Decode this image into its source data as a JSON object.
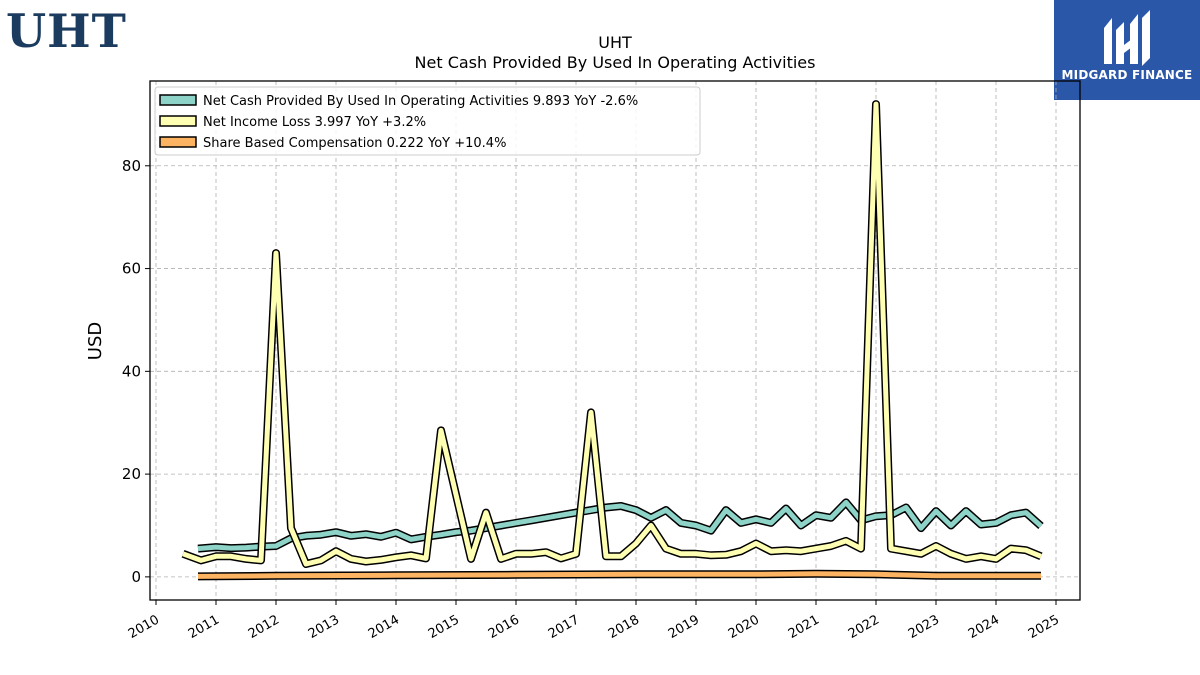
{
  "header": {
    "ticker": "UHT",
    "brand_name": "MIDGARD FINANCE"
  },
  "colors": {
    "operating_cash": "#8dd3c7",
    "net_income": "#ffffb3",
    "share_comp": "#fdb462",
    "brand_bg": "#2a57a8",
    "ticker_text": "#1b3b5f"
  },
  "icons": {
    "brand": "midgard-logo-icon"
  },
  "chart_data": {
    "type": "line",
    "title": "UHT",
    "subtitle": "Net Cash Provided By Used In Operating Activities",
    "xlabel": "",
    "ylabel": "USD",
    "xlim": [
      2009.9,
      2025.4
    ],
    "ylim": [
      -4.5,
      96.5
    ],
    "yticks": [
      0,
      20,
      40,
      60,
      80
    ],
    "xticks": [
      2010,
      2011,
      2012,
      2013,
      2014,
      2015,
      2016,
      2017,
      2018,
      2019,
      2020,
      2021,
      2022,
      2023,
      2024,
      2025
    ],
    "xtick_labels": [
      "2010",
      "2011",
      "2012",
      "2013",
      "2014",
      "2015",
      "2016",
      "2017",
      "2018",
      "2019",
      "2020",
      "2021",
      "2022",
      "2023",
      "2024",
      "2025"
    ],
    "grid": true,
    "legend_position": "top-left",
    "series": [
      {
        "name": "Net Cash Provided By Used In Operating Activities",
        "legend": "Net Cash Provided By Used In Operating Activities  9.893 YoY -2.6%",
        "color": "#8dd3c7",
        "x": [
          2010.7,
          2011.0,
          2011.25,
          2011.5,
          2011.75,
          2012.0,
          2012.25,
          2012.5,
          2012.75,
          2013.0,
          2013.25,
          2013.5,
          2013.75,
          2014.0,
          2014.25,
          2014.5,
          2014.75,
          2015.0,
          2015.25,
          2015.5,
          2015.75,
          2016.0,
          2016.25,
          2016.5,
          2016.75,
          2017.0,
          2017.25,
          2017.5,
          2017.75,
          2018.0,
          2018.25,
          2018.5,
          2018.75,
          2019.0,
          2019.25,
          2019.5,
          2019.75,
          2020.0,
          2020.25,
          2020.5,
          2020.75,
          2021.0,
          2021.25,
          2021.5,
          2021.75,
          2022.0,
          2022.25,
          2022.5,
          2022.75,
          2023.0,
          2023.25,
          2023.5,
          2023.75,
          2024.0,
          2024.25,
          2024.5,
          2024.75
        ],
        "values": [
          5.5,
          5.8,
          5.6,
          5.7,
          5.9,
          6.0,
          7.5,
          8.0,
          8.2,
          8.7,
          8.0,
          8.3,
          7.8,
          8.6,
          7.3,
          7.8,
          8.2,
          8.7,
          9.0,
          9.5,
          10.0,
          10.5,
          11.0,
          11.5,
          12.0,
          12.5,
          13.0,
          13.5,
          13.8,
          13.0,
          11.5,
          13.0,
          10.5,
          10.0,
          9.0,
          13.0,
          10.5,
          11.2,
          10.5,
          13.3,
          10.0,
          12.0,
          11.5,
          14.5,
          11.0,
          11.8,
          12.0,
          13.5,
          9.5,
          12.8,
          10.0,
          12.8,
          10.2,
          10.5,
          12.0,
          12.5,
          9.9
        ]
      },
      {
        "name": "Net Income Loss",
        "legend": "Net Income Loss  3.997 YoY +3.2%",
        "color": "#ffffb3",
        "x": [
          2010.45,
          2010.75,
          2011.0,
          2011.25,
          2011.5,
          2011.75,
          2012.0,
          2012.25,
          2012.5,
          2012.75,
          2013.0,
          2013.25,
          2013.5,
          2013.75,
          2014.0,
          2014.25,
          2014.5,
          2014.75,
          2015.0,
          2015.25,
          2015.5,
          2015.75,
          2016.0,
          2016.25,
          2016.5,
          2016.75,
          2017.0,
          2017.25,
          2017.5,
          2017.75,
          2018.0,
          2018.25,
          2018.5,
          2018.75,
          2019.0,
          2019.25,
          2019.5,
          2019.75,
          2020.0,
          2020.25,
          2020.5,
          2020.75,
          2021.0,
          2021.25,
          2021.5,
          2021.75,
          2022.0,
          2022.25,
          2022.5,
          2022.75,
          2023.0,
          2023.25,
          2023.5,
          2023.75,
          2024.0,
          2024.25,
          2024.5,
          2024.75
        ],
        "values": [
          4.5,
          3.2,
          4.0,
          4.0,
          3.5,
          3.2,
          63.0,
          9.5,
          2.5,
          3.2,
          5.0,
          3.5,
          3.0,
          3.3,
          3.8,
          4.2,
          3.6,
          28.5,
          16.0,
          3.5,
          12.5,
          3.5,
          4.5,
          4.5,
          4.8,
          3.6,
          4.5,
          32.0,
          4.0,
          4.0,
          6.5,
          10.0,
          5.5,
          4.5,
          4.5,
          4.2,
          4.3,
          5.0,
          6.5,
          5.0,
          5.2,
          5.0,
          5.5,
          6.0,
          7.0,
          5.5,
          92.0,
          5.5,
          5.0,
          4.5,
          6.0,
          4.5,
          3.5,
          4.0,
          3.5,
          5.5,
          5.2,
          4.0
        ]
      },
      {
        "name": "Share Based Compensation",
        "legend": "Share Based Compensation  0.222 YoY +10.4%",
        "color": "#fdb462",
        "x": [
          2010.7,
          2012.0,
          2014.0,
          2016.0,
          2018.0,
          2020.0,
          2021.0,
          2022.0,
          2023.0,
          2024.0,
          2024.75
        ],
        "values": [
          0.1,
          0.2,
          0.3,
          0.4,
          0.5,
          0.5,
          0.6,
          0.5,
          0.2,
          0.2,
          0.22
        ]
      }
    ]
  }
}
